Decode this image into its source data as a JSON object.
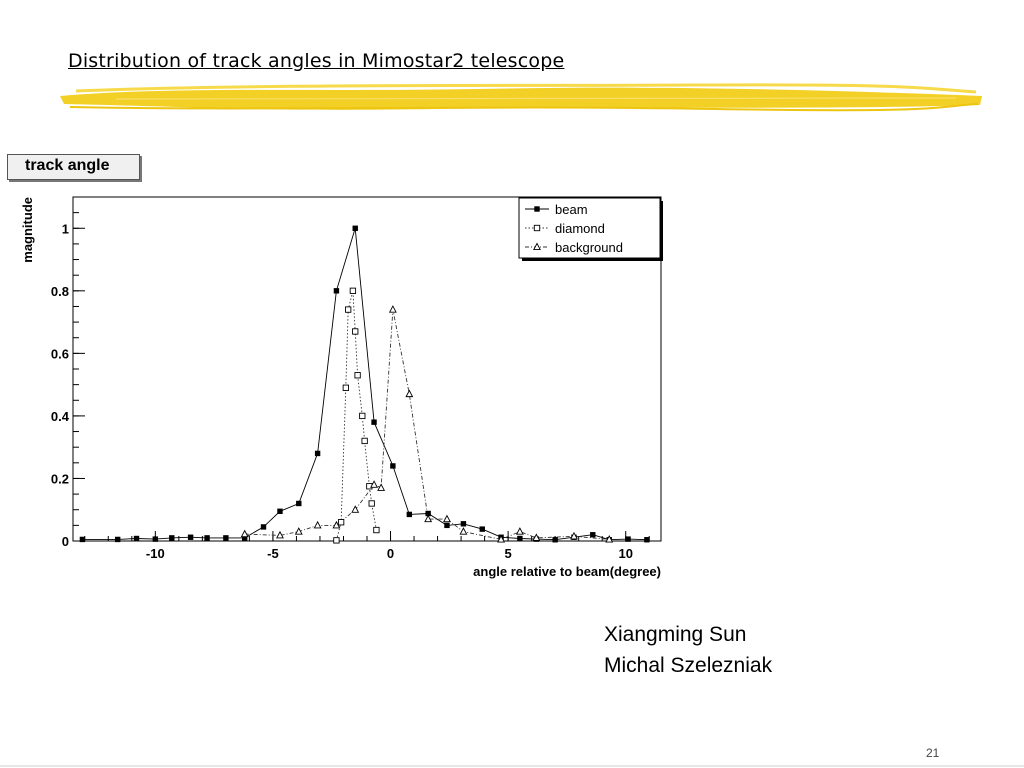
{
  "slide": {
    "title": "Distribution of track angles in Mimostar2 telescope",
    "authors": [
      "Xiangming Sun",
      "Michal Szelezniak"
    ],
    "page_number": "21",
    "brush_color": "#F2CE1A"
  },
  "chart_data": {
    "type": "line",
    "title": "track angle",
    "xlabel": "angle relative to beam(degree)",
    "ylabel": "magnitude",
    "xlim": [
      -13.5,
      11.5
    ],
    "ylim": [
      0,
      1.1
    ],
    "xticks": [
      -10,
      -5,
      0,
      5,
      10
    ],
    "xtick_labels": [
      "-10",
      "-5",
      "0",
      "5",
      "10"
    ],
    "yticks": [
      0,
      0.2,
      0.4,
      0.6,
      0.8,
      1
    ],
    "ytick_labels": [
      "0",
      "0.2",
      "0.4",
      "0.6",
      "0.8",
      "1"
    ],
    "grid": false,
    "legend_position": "top-right",
    "series": [
      {
        "name": "beam",
        "marker": "filled-square",
        "line_style": "solid",
        "x": [
          -13.1,
          -11.6,
          -10.8,
          -10.0,
          -9.3,
          -8.5,
          -7.8,
          -7.0,
          -6.2,
          -5.4,
          -4.7,
          -3.9,
          -3.1,
          -2.3,
          -1.5,
          -0.7,
          0.1,
          0.8,
          1.6,
          2.4,
          3.1,
          3.9,
          4.7,
          5.5,
          6.2,
          7.0,
          7.8,
          8.6,
          9.3,
          10.1,
          10.9
        ],
        "y": [
          0.005,
          0.005,
          0.008,
          0.006,
          0.01,
          0.012,
          0.01,
          0.01,
          0.01,
          0.045,
          0.095,
          0.12,
          0.28,
          0.8,
          1.0,
          0.38,
          0.24,
          0.085,
          0.088,
          0.05,
          0.055,
          0.038,
          0.012,
          0.008,
          0.006,
          0.004,
          0.012,
          0.02,
          0.004,
          0.006,
          0.004
        ]
      },
      {
        "name": "diamond",
        "marker": "open-square",
        "line_style": "dotted",
        "x": [
          -2.3,
          -2.1,
          -1.9,
          -1.8,
          -1.6,
          -1.5,
          -1.4,
          -1.2,
          -1.1,
          -0.9,
          -0.8,
          -0.6
        ],
        "y": [
          0.002,
          0.06,
          0.49,
          0.74,
          0.8,
          0.67,
          0.53,
          0.4,
          0.32,
          0.175,
          0.12,
          0.035
        ]
      },
      {
        "name": "background",
        "marker": "open-triangle",
        "line_style": "dash-dot",
        "x": [
          -6.2,
          -4.7,
          -3.9,
          -3.1,
          -2.3,
          -1.5,
          -0.7,
          -0.4,
          0.1,
          0.8,
          1.6,
          2.4,
          3.1,
          4.7,
          5.5,
          6.2,
          7.8,
          9.3
        ],
        "y": [
          0.022,
          0.018,
          0.03,
          0.05,
          0.05,
          0.1,
          0.18,
          0.17,
          0.74,
          0.47,
          0.07,
          0.07,
          0.03,
          0.005,
          0.03,
          0.01,
          0.015,
          0.005
        ]
      }
    ]
  }
}
